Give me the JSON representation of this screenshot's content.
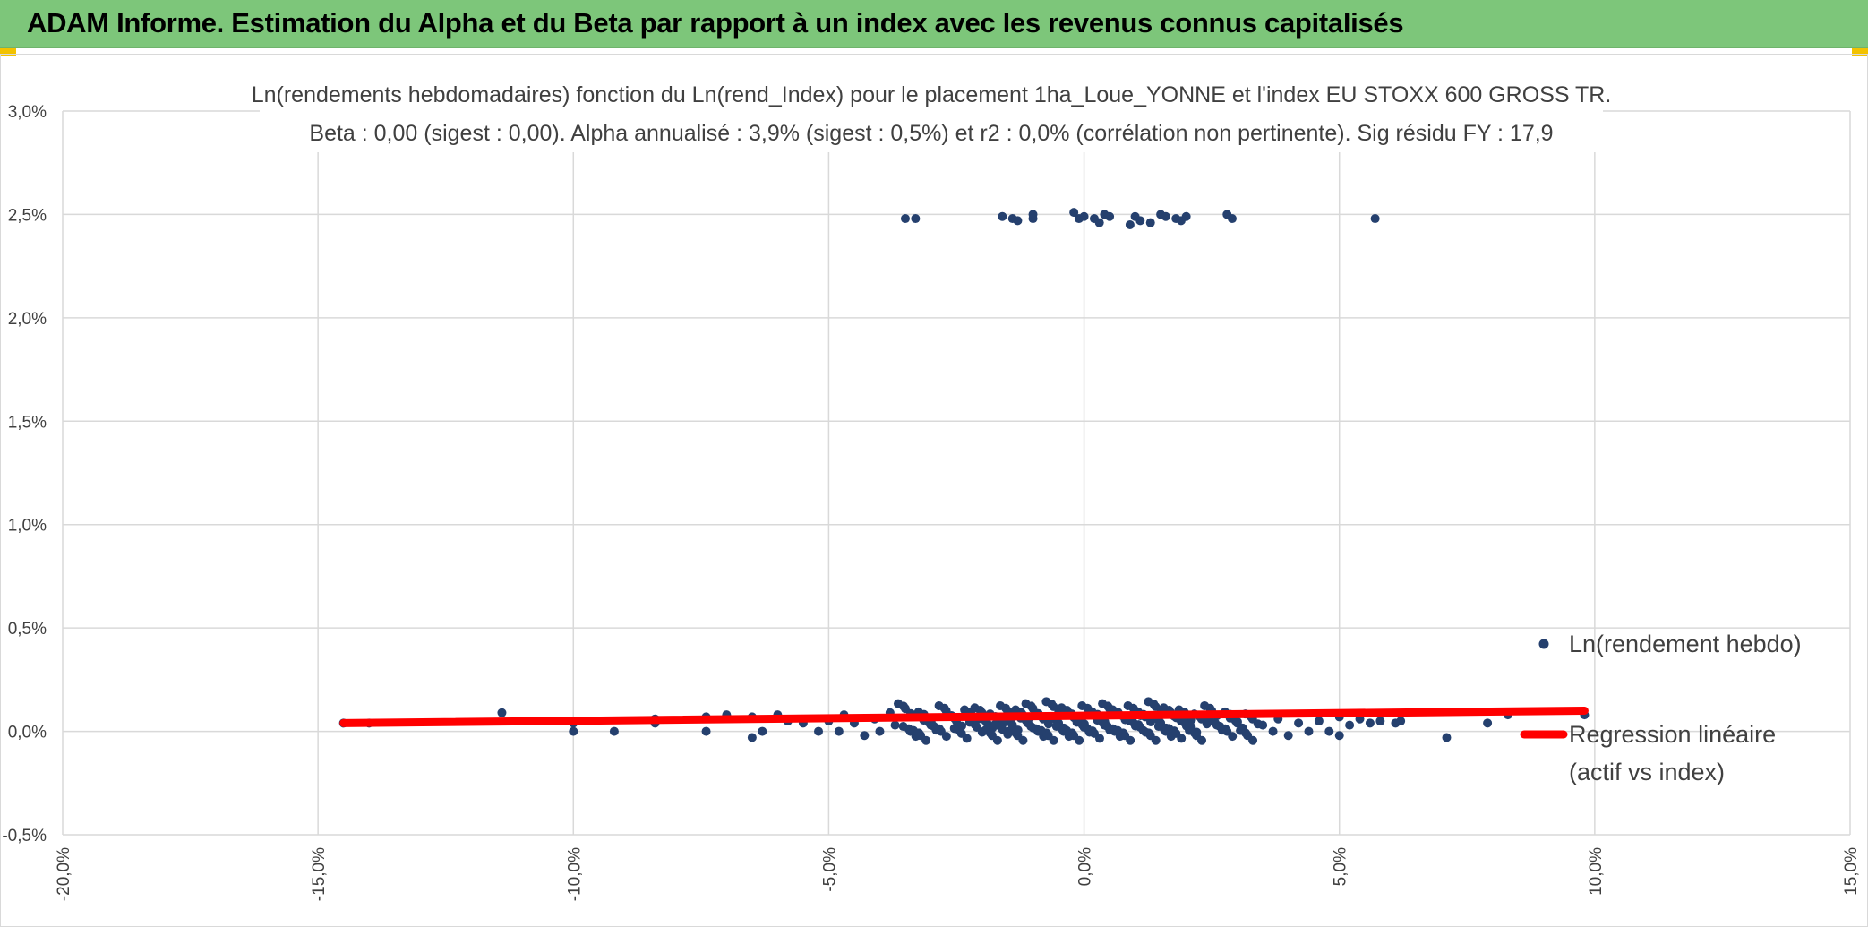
{
  "header": {
    "title": "ADAM Informe. Estimation du Alpha et du Beta par rapport à un index avec les revenus connus capitalisés"
  },
  "colors": {
    "banner": "#7dc67a",
    "points": "#25406e",
    "regression": "#ff0000",
    "grid": "#d9d9d9",
    "text": "#404040"
  },
  "chart_data": {
    "type": "scatter",
    "title_line1": "Ln(rendements hebdomadaires) fonction du Ln(rend_Index) pour le placement 1ha_Loue_YONNE et l'index EU STOXX 600 GROSS TR.",
    "title_line2": "Beta : 0,00 (sigest : 0,00). Alpha annualisé : 3,9% (sigest : 0,5%) et r2 : 0,0% (corrélation non pertinente). Sig résidu FY : 17,9",
    "xlim": [
      -20,
      15
    ],
    "ylim": [
      -0.5,
      3.0
    ],
    "x_ticks": [
      "-20,0%",
      "-15,0%",
      "-10,0%",
      "-5,0%",
      "0,0%",
      "5,0%",
      "10,0%",
      "15,0%"
    ],
    "x_tick_values": [
      -20,
      -15,
      -10,
      -5,
      0,
      5,
      10,
      15
    ],
    "y_ticks": [
      "-0,5%",
      "0,0%",
      "0,5%",
      "1,0%",
      "1,5%",
      "2,0%",
      "2,5%",
      "3,0%"
    ],
    "y_tick_values": [
      -0.5,
      0,
      0.5,
      1.0,
      1.5,
      2.0,
      2.5,
      3.0
    ],
    "grid": true,
    "legend_position": "right",
    "legend": {
      "series1": "Ln(rendement hebdo)",
      "series2_line1": "Regression linéaire",
      "series2_line2": "(actif vs index)"
    },
    "series": [
      {
        "name": "Ln(rendement hebdo)",
        "points": [
          [
            -14.5,
            0.04
          ],
          [
            -14.0,
            0.04
          ],
          [
            -11.4,
            0.09
          ],
          [
            -10.0,
            0.04
          ],
          [
            -10.0,
            0.0
          ],
          [
            -9.2,
            0.0
          ],
          [
            -8.4,
            0.04
          ],
          [
            -8.4,
            0.06
          ],
          [
            -7.4,
            0.0
          ],
          [
            -7.4,
            0.07
          ],
          [
            -7.0,
            0.08
          ],
          [
            -6.5,
            0.07
          ],
          [
            -6.5,
            -0.03
          ],
          [
            -6.3,
            0.0
          ],
          [
            -6.0,
            0.08
          ],
          [
            -5.8,
            0.05
          ],
          [
            -5.5,
            0.04
          ],
          [
            -5.2,
            0.0
          ],
          [
            -5.0,
            0.05
          ],
          [
            -4.8,
            0.0
          ],
          [
            -4.7,
            0.08
          ],
          [
            -4.5,
            0.04
          ],
          [
            -4.3,
            -0.02
          ],
          [
            -4.1,
            0.06
          ],
          [
            -4.0,
            0.0
          ],
          [
            -3.8,
            0.09
          ],
          [
            -3.7,
            0.03
          ],
          [
            -3.5,
            0.11
          ],
          [
            -3.4,
            0.0
          ],
          [
            -3.2,
            -0.02
          ],
          [
            -3.1,
            0.07
          ],
          [
            -3.0,
            0.03
          ],
          [
            -2.8,
            0.0
          ],
          [
            -2.7,
            0.1
          ],
          [
            -2.5,
            0.05
          ],
          [
            -2.4,
            -0.01
          ],
          [
            -2.2,
            0.08
          ],
          [
            -2.1,
            0.02
          ],
          [
            -2.0,
            0.09
          ],
          [
            -1.9,
            0.04
          ],
          [
            -1.8,
            -0.02
          ],
          [
            -1.7,
            0.06
          ],
          [
            -1.6,
            0.01
          ],
          [
            -1.5,
            0.1
          ],
          [
            -1.4,
            0.03
          ],
          [
            -1.3,
            -0.02
          ],
          [
            -1.2,
            0.08
          ],
          [
            -1.1,
            0.04
          ],
          [
            -1.0,
            0.11
          ],
          [
            -0.9,
            0.0
          ],
          [
            -0.8,
            0.06
          ],
          [
            -0.7,
            -0.02
          ],
          [
            -0.6,
            0.12
          ],
          [
            -0.5,
            0.04
          ],
          [
            -0.4,
            0.0
          ],
          [
            -0.3,
            0.09
          ],
          [
            -0.2,
            -0.02
          ],
          [
            -0.1,
            0.06
          ],
          [
            0.0,
            0.02
          ],
          [
            0.1,
            0.1
          ],
          [
            0.2,
            -0.01
          ],
          [
            0.3,
            0.07
          ],
          [
            0.4,
            0.03
          ],
          [
            0.5,
            0.11
          ],
          [
            0.6,
            0.0
          ],
          [
            0.7,
            0.08
          ],
          [
            0.8,
            -0.02
          ],
          [
            0.9,
            0.05
          ],
          [
            1.0,
            0.1
          ],
          [
            1.1,
            0.02
          ],
          [
            1.2,
            0.07
          ],
          [
            1.3,
            -0.02
          ],
          [
            1.4,
            0.12
          ],
          [
            1.5,
            0.04
          ],
          [
            1.6,
            0.0
          ],
          [
            1.7,
            0.09
          ],
          [
            1.8,
            -0.01
          ],
          [
            1.9,
            0.05
          ],
          [
            2.0,
            0.08
          ],
          [
            2.1,
            0.02
          ],
          [
            2.2,
            -0.02
          ],
          [
            2.3,
            0.06
          ],
          [
            2.5,
            0.1
          ],
          [
            2.6,
            0.03
          ],
          [
            2.8,
            0.0
          ],
          [
            2.9,
            0.07
          ],
          [
            3.0,
            0.04
          ],
          [
            3.2,
            -0.02
          ],
          [
            3.3,
            0.06
          ],
          [
            3.5,
            0.03
          ],
          [
            3.7,
            0.0
          ],
          [
            3.8,
            0.06
          ],
          [
            4.0,
            -0.02
          ],
          [
            4.2,
            0.04
          ],
          [
            4.4,
            0.0
          ],
          [
            4.6,
            0.05
          ],
          [
            4.8,
            0.0
          ],
          [
            5.0,
            -0.02
          ],
          [
            5.0,
            0.07
          ],
          [
            5.2,
            0.03
          ],
          [
            5.4,
            0.06
          ],
          [
            5.6,
            0.04
          ],
          [
            5.8,
            0.05
          ],
          [
            6.1,
            0.04
          ],
          [
            6.2,
            0.05
          ],
          [
            7.1,
            -0.03
          ],
          [
            7.9,
            0.04
          ],
          [
            8.3,
            0.08
          ],
          [
            9.8,
            0.08
          ],
          [
            -3.5,
            2.48
          ],
          [
            -3.3,
            2.48
          ],
          [
            -1.6,
            2.49
          ],
          [
            -1.4,
            2.48
          ],
          [
            -1.3,
            2.47
          ],
          [
            -1.0,
            2.5
          ],
          [
            -1.0,
            2.48
          ],
          [
            -0.2,
            2.51
          ],
          [
            -0.1,
            2.48
          ],
          [
            0.0,
            2.49
          ],
          [
            0.2,
            2.48
          ],
          [
            0.3,
            2.46
          ],
          [
            0.4,
            2.5
          ],
          [
            0.5,
            2.49
          ],
          [
            0.9,
            2.45
          ],
          [
            1.0,
            2.49
          ],
          [
            1.1,
            2.47
          ],
          [
            1.3,
            2.46
          ],
          [
            1.5,
            2.5
          ],
          [
            1.6,
            2.49
          ],
          [
            1.8,
            2.48
          ],
          [
            1.9,
            2.47
          ],
          [
            2.0,
            2.49
          ],
          [
            2.8,
            2.5
          ],
          [
            2.9,
            2.48
          ],
          [
            5.7,
            2.48
          ]
        ]
      },
      {
        "name": "Regression linéaire (actif vs index)",
        "line": [
          [
            -14.5,
            0.04
          ],
          [
            9.8,
            0.1
          ]
        ]
      }
    ]
  }
}
